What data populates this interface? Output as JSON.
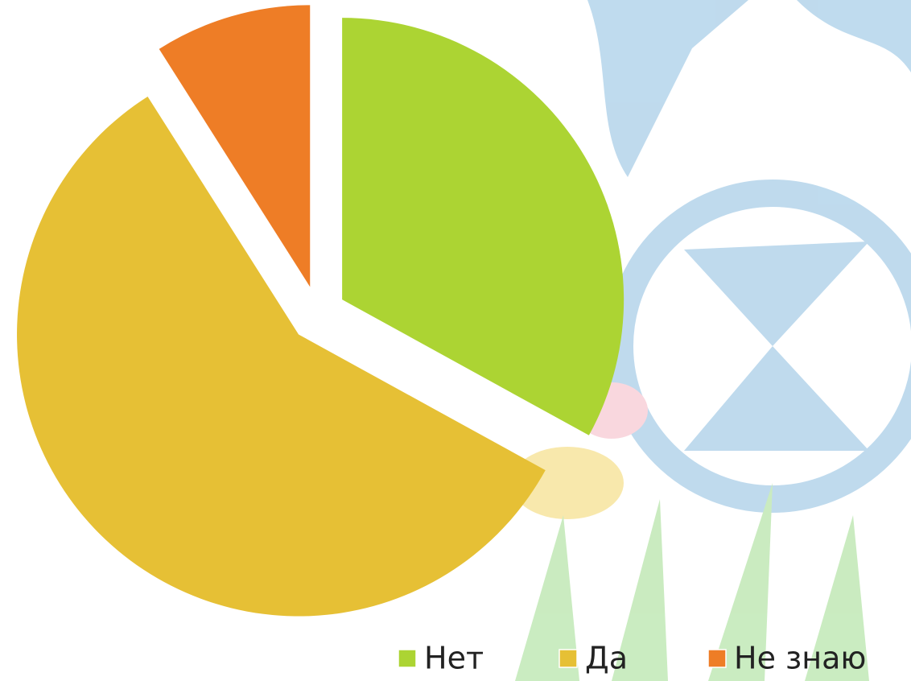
{
  "chart_data": {
    "type": "pie",
    "categories": [
      "Нет",
      "Да",
      "Не знаю"
    ],
    "values": [
      33,
      58,
      9
    ],
    "colors": [
      "#acd433",
      "#e6c035",
      "#ee7d26"
    ],
    "legend": "bottom-right"
  }
}
